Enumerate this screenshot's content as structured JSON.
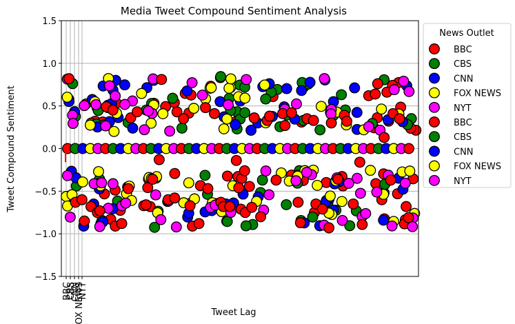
{
  "chart_data": {
    "type": "scatter",
    "title": "Media Tweet Compound Sentiment Analysis",
    "xlabel": "Tweet Lag",
    "ylabel": "Tweet Compound Sentiment",
    "ylim": [
      -1.5,
      1.5
    ],
    "yticks": [
      "−1.5",
      "−1.0",
      "−0.5",
      "0.0",
      "0.5",
      "1.0",
      "1.5"
    ],
    "xtick_labels": [
      "BBC",
      "CBS",
      "CNN",
      "FOX NEWS",
      "NYT"
    ],
    "grid": true,
    "legend": {
      "title": "News Outlet",
      "placement": "outside-right",
      "entries": [
        "BBC",
        "CBS",
        "CNN",
        "FOX NEWS",
        "NYT",
        "BBC",
        "CBS",
        "CNN",
        "FOX NEWS",
        "NYT"
      ]
    },
    "series": [
      {
        "name": "BBC",
        "color": "#ff0000",
        "values": [
          0.82,
          -0.63,
          -0.6,
          -0.85,
          -0.68,
          -0.75,
          -0.73,
          0.49,
          0.45,
          -0.91,
          -0.88,
          -0.47,
          0.36,
          0.43,
          -0.67,
          -0.66,
          -0.36,
          -0.13,
          0.81,
          -0.6,
          -0.58,
          0.43,
          0.35,
          -0.67,
          -0.91,
          -0.88,
          0.48,
          -0.47,
          0.41,
          -0.63,
          -0.68,
          -0.68,
          -0.14,
          -0.46,
          -0.75,
          -0.69,
          0.36,
          -0.8,
          0.33,
          0.38,
          -0.37,
          0.41,
          0.27,
          0.42,
          -0.63,
          -0.87,
          0.35,
          0.33,
          -0.65,
          -0.71,
          -0.93,
          0.3,
          -0.36,
          0.39,
          0.32,
          -0.65,
          -0.16,
          -0.89,
          0.62,
          0.64,
          0.76,
          0.13,
          -0.37,
          0.41,
          0.35,
          -0.68,
          -0.81
        ]
      }
    ]
  },
  "legend_colors": [
    "#ff0000",
    "#008000",
    "#0000ff",
    "#ffff00",
    "#ff00ff",
    "#ff0000",
    "#008000",
    "#0000ff",
    "#ffff00",
    "#ff00ff"
  ]
}
